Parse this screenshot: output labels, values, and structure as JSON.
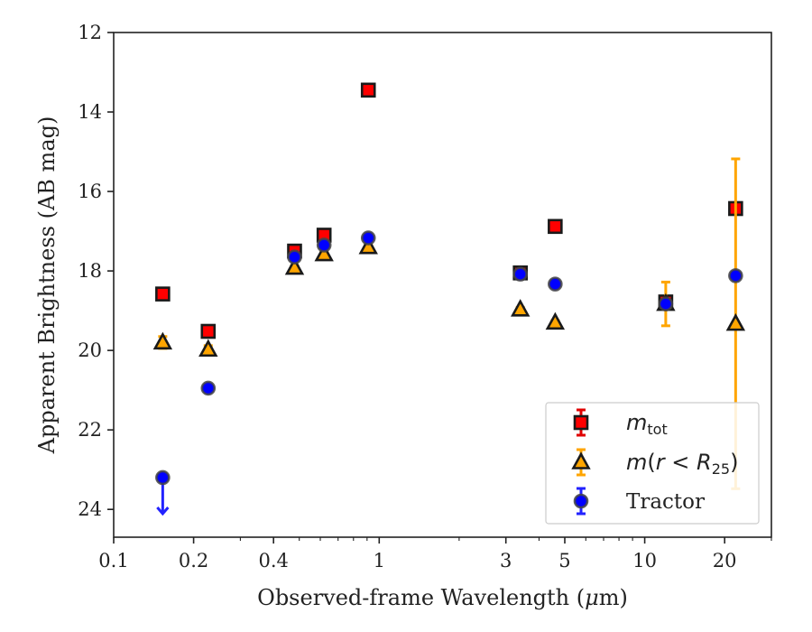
{
  "chart_data": {
    "type": "scatter",
    "xlabel_prefix": "Observed-frame Wavelength (",
    "xlabel_mu": "μ",
    "xlabel_suffix": "m)",
    "ylabel": "Apparent Brightness (AB mag)",
    "xscale": "log",
    "xlim": [
      0.1,
      30
    ],
    "ylim": [
      24.7,
      12
    ],
    "y_inverted": true,
    "xticks": [
      {
        "value": 0.1,
        "label": "0.1"
      },
      {
        "value": 0.2,
        "label": "0.2"
      },
      {
        "value": 0.4,
        "label": "0.4"
      },
      {
        "value": 1,
        "label": "1"
      },
      {
        "value": 3,
        "label": "3"
      },
      {
        "value": 5,
        "label": "5"
      },
      {
        "value": 10,
        "label": "10"
      },
      {
        "value": 20,
        "label": "20"
      }
    ],
    "yticks": [
      {
        "value": 12,
        "label": "12"
      },
      {
        "value": 14,
        "label": "14"
      },
      {
        "value": 16,
        "label": "16"
      },
      {
        "value": 18,
        "label": "18"
      },
      {
        "value": 20,
        "label": "20"
      },
      {
        "value": 22,
        "label": "22"
      },
      {
        "value": 24,
        "label": "24"
      }
    ],
    "legend_position": "lower-right",
    "series": [
      {
        "key": "mtot",
        "legend": {
          "m": "m",
          "sub": "tot"
        },
        "marker": "square",
        "fill": "#ff0000",
        "edge": "#1a1a1a",
        "errcolor": "#e00000",
        "points": [
          {
            "x": 0.153,
            "y": 18.58,
            "err": 0.05
          },
          {
            "x": 0.227,
            "y": 19.52,
            "err": 0.05
          },
          {
            "x": 0.48,
            "y": 17.5,
            "err": 0.04
          },
          {
            "x": 0.62,
            "y": 17.1,
            "err": 0.04
          },
          {
            "x": 0.91,
            "y": 13.45,
            "err": 0.04
          },
          {
            "x": 3.4,
            "y": 18.05,
            "err": 0.06
          },
          {
            "x": 4.6,
            "y": 16.88,
            "err": 0.06
          },
          {
            "x": 12.0,
            "y": 18.78,
            "err": 0.1
          },
          {
            "x": 22.0,
            "y": 16.43,
            "err": 0.1
          }
        ]
      },
      {
        "key": "mr25",
        "legend": {
          "m": "m",
          "open": "(",
          "r": "r",
          "lt": " < ",
          "R": "R",
          "sub": "25",
          "close": ")"
        },
        "marker": "triangle",
        "fill": "#ffa500",
        "edge": "#1a1a1a",
        "errcolor": "#ffa500",
        "points": [
          {
            "x": 0.153,
            "y": 19.8,
            "err": 0.15
          },
          {
            "x": 0.227,
            "y": 19.98,
            "err": 0.1
          },
          {
            "x": 0.48,
            "y": 17.92,
            "err": 0.05
          },
          {
            "x": 0.62,
            "y": 17.58,
            "err": 0.05
          },
          {
            "x": 0.91,
            "y": 17.4,
            "err": 0.05
          },
          {
            "x": 3.4,
            "y": 18.97,
            "err": 0.05
          },
          {
            "x": 4.6,
            "y": 19.3,
            "err": 0.05
          },
          {
            "x": 12.0,
            "y": 18.83,
            "err": 0.55
          },
          {
            "x": 22.0,
            "y": 19.33,
            "err": 4.15
          }
        ]
      },
      {
        "key": "tractor",
        "legend": {
          "label": "Tractor"
        },
        "marker": "circle",
        "fill": "#0000ff",
        "edge": "#444444",
        "errcolor": "#2222ff",
        "points": [
          {
            "x": 0.153,
            "y": 23.2,
            "err": 0.05,
            "upper_limit": true
          },
          {
            "x": 0.227,
            "y": 20.95,
            "err": 0.05
          },
          {
            "x": 0.48,
            "y": 17.65,
            "err": 0.05
          },
          {
            "x": 0.62,
            "y": 17.35,
            "err": 0.05
          },
          {
            "x": 0.91,
            "y": 17.17,
            "err": 0.05
          },
          {
            "x": 3.4,
            "y": 18.08,
            "err": 0.05
          },
          {
            "x": 4.6,
            "y": 18.33,
            "err": 0.05
          },
          {
            "x": 12.0,
            "y": 18.83,
            "err": 0.05
          },
          {
            "x": 22.0,
            "y": 18.12,
            "err": 0.05
          }
        ]
      }
    ]
  }
}
